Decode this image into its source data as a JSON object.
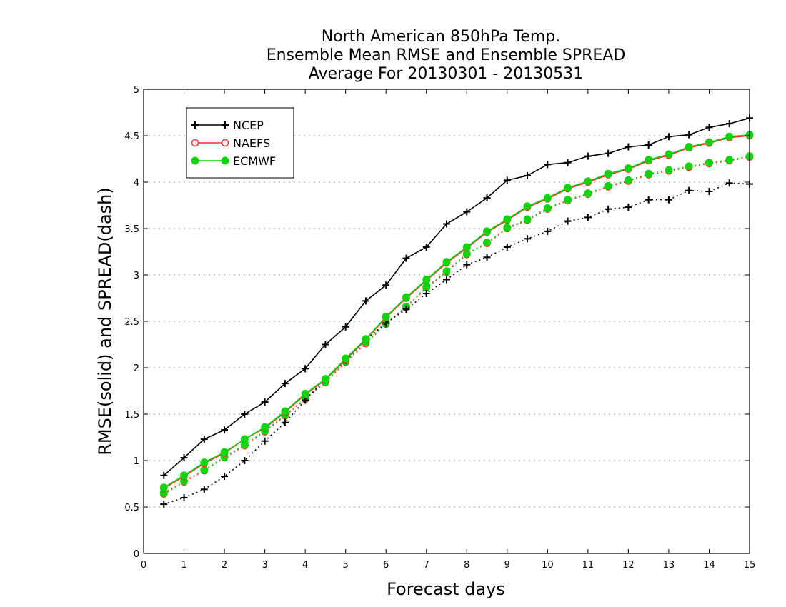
{
  "chart_data": {
    "type": "line",
    "title_lines": [
      "North American 850hPa Temp.",
      "Ensemble Mean RMSE and Ensemble SPREAD",
      "Average For 20130301 - 20130531"
    ],
    "xlabel": "Forecast days",
    "ylabel": "RMSE(solid) and SPREAD(dash)",
    "xlim": [
      0,
      15
    ],
    "ylim": [
      0,
      5
    ],
    "x_ticks": [
      "0",
      "1",
      "2",
      "3",
      "4",
      "5",
      "6",
      "7",
      "8",
      "9",
      "10",
      "11",
      "12",
      "13",
      "14",
      "15"
    ],
    "y_ticks": [
      "0",
      "0.5",
      "1",
      "1.5",
      "2",
      "2.5",
      "3",
      "3.5",
      "4",
      "4.5",
      "5"
    ],
    "grid": "horizontal dotted",
    "legend_position": "top-left",
    "x": [
      0.5,
      1,
      1.5,
      2,
      2.5,
      3,
      3.5,
      4,
      4.5,
      5,
      5.5,
      6,
      6.5,
      7,
      7.5,
      8,
      8.5,
      9,
      9.5,
      10,
      10.5,
      11,
      11.5,
      12,
      12.5,
      13,
      13.5,
      14,
      14.5,
      15
    ],
    "series": [
      {
        "name": "NCEP",
        "color": "#000000",
        "marker": "plus",
        "rmse": [
          0.84,
          1.03,
          1.23,
          1.33,
          1.5,
          1.63,
          1.83,
          1.99,
          2.25,
          2.44,
          2.72,
          2.89,
          3.18,
          3.3,
          3.55,
          3.68,
          3.83,
          4.02,
          4.07,
          4.19,
          4.21,
          4.28,
          4.31,
          4.38,
          4.4,
          4.49,
          4.51,
          4.59,
          4.63,
          4.69
        ],
        "spread": [
          0.53,
          0.6,
          0.69,
          0.83,
          1.0,
          1.21,
          1.41,
          1.65,
          1.88,
          2.08,
          2.3,
          2.48,
          2.63,
          2.8,
          2.95,
          3.11,
          3.19,
          3.3,
          3.39,
          3.47,
          3.58,
          3.62,
          3.71,
          3.73,
          3.81,
          3.81,
          3.91,
          3.9,
          3.99,
          3.98
        ]
      },
      {
        "name": "NAEFS",
        "color": "#ff2a2a",
        "marker": "open-circle",
        "rmse": [
          0.7,
          0.83,
          0.97,
          1.08,
          1.23,
          1.35,
          1.52,
          1.71,
          1.87,
          2.09,
          2.3,
          2.54,
          2.75,
          2.94,
          3.13,
          3.29,
          3.46,
          3.59,
          3.73,
          3.82,
          3.93,
          4.0,
          4.08,
          4.14,
          4.23,
          4.29,
          4.37,
          4.42,
          4.48,
          4.5
        ],
        "spread": [
          0.64,
          0.77,
          0.89,
          1.03,
          1.16,
          1.31,
          1.48,
          1.66,
          1.84,
          2.06,
          2.26,
          2.47,
          2.65,
          2.86,
          3.03,
          3.22,
          3.34,
          3.5,
          3.59,
          3.71,
          3.8,
          3.87,
          3.95,
          4.01,
          4.08,
          4.12,
          4.16,
          4.2,
          4.23,
          4.27
        ]
      },
      {
        "name": "ECMWF",
        "color": "#11d411",
        "marker": "filled-circle",
        "rmse": [
          0.71,
          0.84,
          0.98,
          1.09,
          1.23,
          1.36,
          1.53,
          1.72,
          1.88,
          2.1,
          2.31,
          2.55,
          2.76,
          2.95,
          3.14,
          3.3,
          3.47,
          3.6,
          3.74,
          3.83,
          3.94,
          4.01,
          4.09,
          4.15,
          4.24,
          4.3,
          4.38,
          4.43,
          4.49,
          4.51
        ],
        "spread": [
          0.65,
          0.78,
          0.9,
          1.04,
          1.17,
          1.32,
          1.49,
          1.67,
          1.85,
          2.07,
          2.27,
          2.48,
          2.66,
          2.87,
          3.04,
          3.23,
          3.35,
          3.51,
          3.6,
          3.72,
          3.81,
          3.88,
          3.96,
          4.02,
          4.09,
          4.13,
          4.17,
          4.21,
          4.24,
          4.28
        ]
      }
    ]
  }
}
